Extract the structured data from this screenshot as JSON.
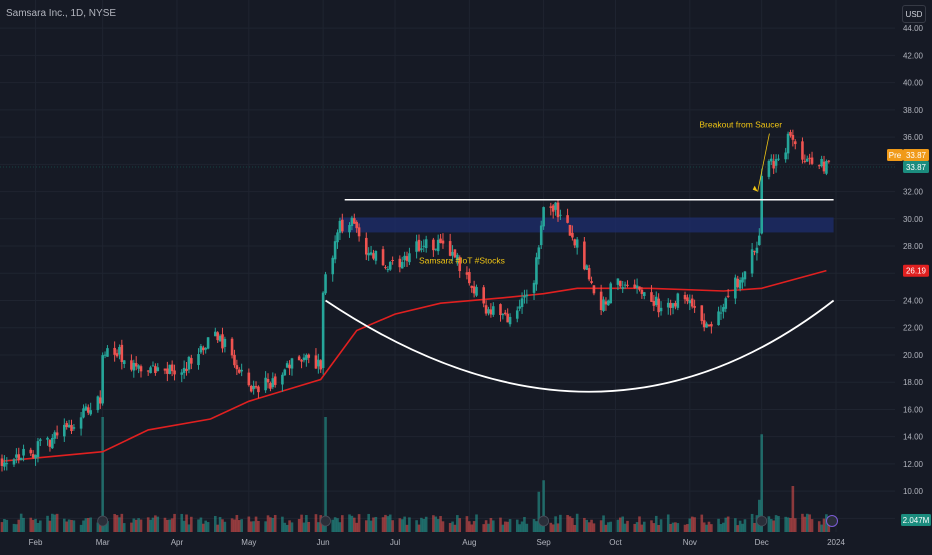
{
  "header": {
    "symbol_title": "Samsara Inc., 1D, NYSE",
    "currency": "USD"
  },
  "colors": {
    "background": "#161a25",
    "grid": "#1f2430",
    "up": "#26a69a",
    "down": "#ef5350",
    "ma": "#e02020",
    "resistance": "#ffffff",
    "saucer": "#ffffff",
    "zone": "#1e2e6e",
    "annotation": "#f0c514",
    "axis_text": "#b2b5be",
    "pre_tag": "#f09a19",
    "last_tag": "#1b8c7e",
    "ma_tag": "#e02020",
    "volume_tag": "#1b8c7e"
  },
  "chart_data": {
    "type": "candlestick",
    "title": "Samsara Inc., 1D, NYSE",
    "ylim": [
      8,
      45
    ],
    "y_ticks": [
      "8.00",
      "10.00",
      "12.00",
      "14.00",
      "16.00",
      "18.00",
      "20.00",
      "22.00",
      "24.00",
      "26.00",
      "28.00",
      "30.00",
      "32.00",
      "34.00",
      "36.00",
      "38.00",
      "40.00",
      "42.00",
      "44.00"
    ],
    "x_ticks": [
      "Feb",
      "Mar",
      "Apr",
      "May",
      "Jun",
      "Jul",
      "Aug",
      "Sep",
      "Oct",
      "Nov",
      "Dec",
      "2024"
    ],
    "x_domain": [
      "2023-01-18",
      "2024-01-01"
    ],
    "tick_dates": [
      "2023-02-01",
      "2023-03-01",
      "2023-04-01",
      "2023-05-01",
      "2023-06-01",
      "2023-07-01",
      "2023-08-01",
      "2023-09-01",
      "2023-10-01",
      "2023-11-01",
      "2023-12-01",
      "2024-01-01"
    ],
    "price_path": [
      [
        "2023-01-18",
        12.4
      ],
      [
        "2023-02-01",
        13.0
      ],
      [
        "2023-02-15",
        14.8
      ],
      [
        "2023-02-28",
        16.8
      ],
      [
        "2023-03-01",
        20.0
      ],
      [
        "2023-03-05",
        20.5
      ],
      [
        "2023-03-15",
        19.0
      ],
      [
        "2023-03-25",
        18.6
      ],
      [
        "2023-04-05",
        19.3
      ],
      [
        "2023-04-18",
        21.5
      ],
      [
        "2023-04-25",
        19.5
      ],
      [
        "2023-05-01",
        17.3
      ],
      [
        "2023-05-10",
        18.0
      ],
      [
        "2023-05-20",
        19.6
      ],
      [
        "2023-05-31",
        19.3
      ],
      [
        "2023-06-01",
        25.0
      ],
      [
        "2023-06-08",
        29.5
      ],
      [
        "2023-06-12",
        30.0
      ],
      [
        "2023-06-20",
        27.5
      ],
      [
        "2023-07-01",
        26.5
      ],
      [
        "2023-07-10",
        27.8
      ],
      [
        "2023-07-20",
        28.3
      ],
      [
        "2023-07-31",
        26.0
      ],
      [
        "2023-08-08",
        23.5
      ],
      [
        "2023-08-18",
        22.8
      ],
      [
        "2023-08-28",
        25.5
      ],
      [
        "2023-09-01",
        31.3
      ],
      [
        "2023-09-08",
        30.5
      ],
      [
        "2023-09-15",
        28.0
      ],
      [
        "2023-09-25",
        23.5
      ],
      [
        "2023-10-01",
        25.5
      ],
      [
        "2023-10-10",
        24.8
      ],
      [
        "2023-10-20",
        23.5
      ],
      [
        "2023-10-31",
        24.5
      ],
      [
        "2023-11-08",
        22.0
      ],
      [
        "2023-11-15",
        23.8
      ],
      [
        "2023-11-25",
        26.5
      ],
      [
        "2023-11-30",
        28.5
      ],
      [
        "2023-12-01",
        33.5
      ],
      [
        "2023-12-08",
        34.5
      ],
      [
        "2023-12-13",
        36.0
      ],
      [
        "2023-12-20",
        34.0
      ],
      [
        "2023-12-28",
        33.9
      ]
    ],
    "moving_average": {
      "path": [
        [
          "2023-01-18",
          12.2
        ],
        [
          "2023-03-01",
          12.9
        ],
        [
          "2023-03-20",
          14.5
        ],
        [
          "2023-04-15",
          15.3
        ],
        [
          "2023-05-01",
          16.6
        ],
        [
          "2023-05-31",
          18.2
        ],
        [
          "2023-06-15",
          21.8
        ],
        [
          "2023-07-01",
          23.0
        ],
        [
          "2023-07-20",
          23.8
        ],
        [
          "2023-08-15",
          24.2
        ],
        [
          "2023-09-01",
          24.5
        ],
        [
          "2023-09-15",
          24.9
        ],
        [
          "2023-10-15",
          24.9
        ],
        [
          "2023-11-15",
          24.7
        ],
        [
          "2023-12-01",
          24.9
        ],
        [
          "2023-12-28",
          26.2
        ]
      ],
      "last_value": "26.19"
    },
    "resistance_line": {
      "y": 31.4,
      "from": "2023-06-10",
      "to": "2023-12-31"
    },
    "supply_zone": {
      "y_from": 29.0,
      "y_to": 30.1,
      "from": "2023-06-08",
      "to": "2023-12-31"
    },
    "saucer": {
      "from": [
        "2023-06-02",
        24.0
      ],
      "bottom": [
        "2023-09-20",
        17.3
      ],
      "to": [
        "2023-12-31",
        24.0
      ]
    },
    "annotations": [
      {
        "text": "Breakout from Saucer",
        "x": "2023-11-05",
        "y": 36.7,
        "arrow_to": [
          "2023-12-01",
          32.0
        ]
      },
      {
        "text": "Samsara #IoT #Stocks",
        "x": "2023-07-11",
        "y": 26.7
      }
    ],
    "price_tags": {
      "pre": {
        "label": "Pre",
        "value": "33.87"
      },
      "last": "33.87",
      "ma": "26.19",
      "volume": "2.047M"
    }
  }
}
